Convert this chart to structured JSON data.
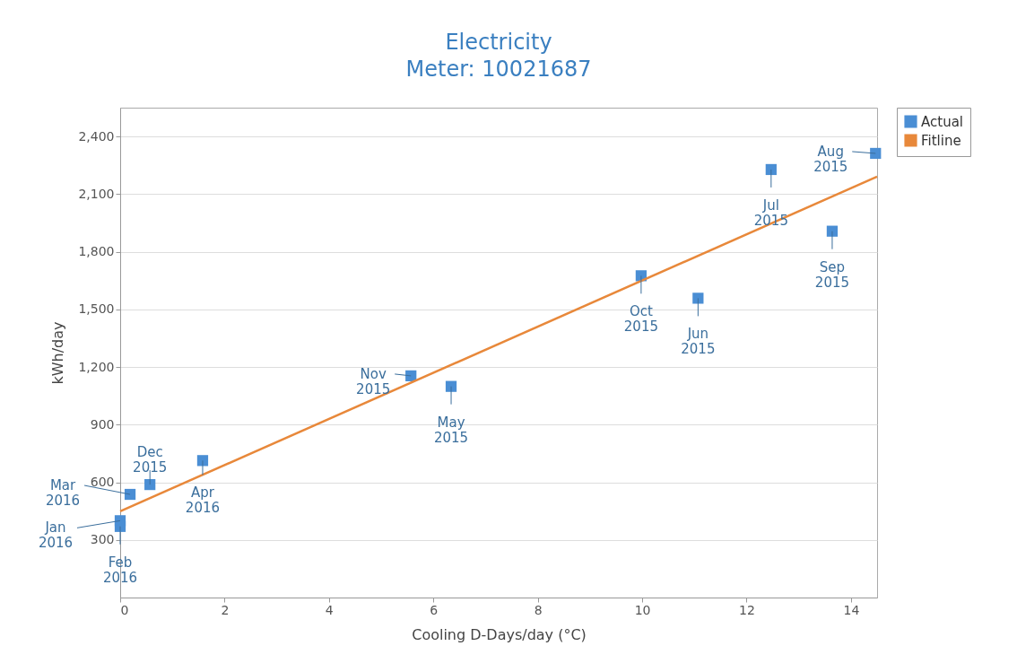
{
  "chart_data": {
    "type": "scatter",
    "title": "Electricity",
    "subtitle": "Meter: 10021687",
    "xlabel": "Cooling D-Days/day (°C)",
    "ylabel": "kWh/day",
    "xlim": [
      0,
      14.5
    ],
    "xticks": [
      0,
      2,
      4,
      6,
      8,
      10,
      12,
      14
    ],
    "ylim": [
      0,
      2550
    ],
    "yticks": [
      300,
      600,
      900,
      {
        "value": 1200,
        "label": "1,200"
      },
      {
        "value": 1500,
        "label": "1,500"
      },
      {
        "value": 1800,
        "label": "1,800"
      },
      {
        "value": 2100,
        "label": "2,100"
      },
      {
        "value": 2400,
        "label": "2,400"
      }
    ],
    "grid": "y",
    "legend": "top right",
    "series": [
      {
        "name": "Actual",
        "type": "scatter",
        "marker": "square",
        "color": "#4a8ed4",
        "x": [
          0,
          0,
          0.19,
          0.57,
          1.58,
          5.57,
          6.34,
          9.98,
          11.07,
          12.47,
          13.64,
          14.47
        ],
        "values": [
          400,
          370,
          537,
          588,
          713,
          1154,
          1099,
          1675,
          1558,
          2228,
          1907,
          2312
        ]
      },
      {
        "name": "Fitline",
        "type": "line",
        "color": "#e8883a",
        "x": [
          0,
          14.5
        ],
        "values": [
          449,
          2191
        ]
      }
    ],
    "annotations": [
      {
        "text": "Jan 2016",
        "x": 0,
        "y": 400
      },
      {
        "text": "Feb 2016",
        "x": 0,
        "y": 370
      },
      {
        "text": "Mar 2016",
        "x": 0.19,
        "y": 537
      },
      {
        "text": "Dec 2015",
        "x": 0.57,
        "y": 588
      },
      {
        "text": "Apr 2016",
        "x": 1.58,
        "y": 713
      },
      {
        "text": "Nov 2015",
        "x": 5.57,
        "y": 1154
      },
      {
        "text": "May 2015",
        "x": 6.34,
        "y": 1099
      },
      {
        "text": "Oct 2015",
        "x": 9.98,
        "y": 1675
      },
      {
        "text": "Jun 2015",
        "x": 11.07,
        "y": 1558
      },
      {
        "text": "Jul 2015",
        "x": 12.47,
        "y": 2228
      },
      {
        "text": "Sep 2015",
        "x": 13.64,
        "y": 1907
      },
      {
        "text": "Aug 2015",
        "x": 14.47,
        "y": 2312
      }
    ]
  }
}
